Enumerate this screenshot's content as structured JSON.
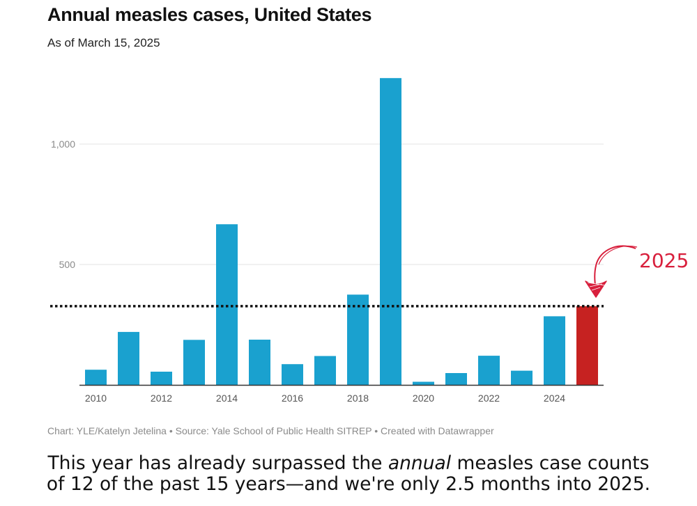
{
  "header": {
    "title": "Annual measles cases, United States",
    "subtitle": "As of March 15, 2025"
  },
  "chart_data": {
    "type": "bar",
    "title": "Annual measles cases, United States",
    "subtitle": "As of March 15, 2025",
    "xlabel": "",
    "ylabel": "",
    "ylim": [
      0,
      1300
    ],
    "yticks": [
      500,
      1000
    ],
    "ytick_labels": [
      "500",
      "1,000"
    ],
    "grid": true,
    "categories": [
      "2010",
      "2011",
      "2012",
      "2013",
      "2014",
      "2015",
      "2016",
      "2017",
      "2018",
      "2019",
      "2020",
      "2021",
      "2022",
      "2023",
      "2024",
      "2025"
    ],
    "values": [
      63,
      220,
      55,
      187,
      667,
      188,
      86,
      120,
      375,
      1274,
      13,
      49,
      121,
      59,
      285,
      327
    ],
    "x_tick_labels": [
      "2010",
      "2012",
      "2014",
      "2016",
      "2018",
      "2020",
      "2022",
      "2024"
    ],
    "colors": {
      "bar": "#1aa1cf",
      "highlight": "#c62221",
      "reference_line": "#111111",
      "annotation": "#d81f3c"
    },
    "highlight_category": "2025",
    "reference_line": {
      "value": 327,
      "style": "dotted"
    },
    "annotation": {
      "text": "2025",
      "target": "2025"
    }
  },
  "footer": {
    "credit": "Chart: YLE/Katelyn Jetelina • Source: Yale School of Public Health SITREP • Created with Datawrapper"
  },
  "caption": {
    "line1_pre": "This year has already surpassed the ",
    "line1_em": "annual",
    "line1_post": " measles case counts",
    "line2": "of 12 of the past 15 years—and we're only 2.5 months into 2025."
  }
}
